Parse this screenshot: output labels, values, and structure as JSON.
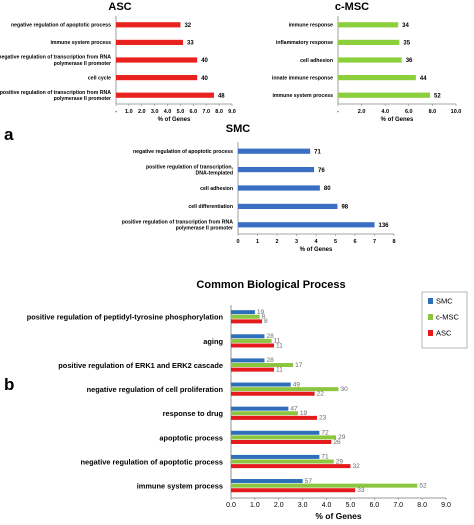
{
  "panel_labels": {
    "a": "a",
    "b": "b"
  },
  "colors": {
    "red": "#e8231f",
    "green": "#8ccf3c",
    "blue": "#3a6fc4",
    "smc": "#2e6fba",
    "cmsc": "#8cc63f",
    "asc": "#e41a1c",
    "label": "#000000",
    "value": "#6b6b6b"
  },
  "chart_data": [
    {
      "type": "bar",
      "orientation": "horizontal",
      "title": "ASC",
      "categories": [
        "negative regulation of apoptotic process",
        "immune system process",
        "negative regulation of transcription from RNA polymerase II promoter",
        "cell cycle",
        "positive regulation of transcription from RNA polymerase II promoter"
      ],
      "values": [
        5.0,
        5.2,
        6.3,
        6.3,
        7.6
      ],
      "data_labels": [
        "32",
        "33",
        "40",
        "40",
        "48"
      ],
      "xlabel": "% of Genes",
      "xticks": [
        "-",
        "1.0",
        "2.0",
        "3.0",
        "4.0",
        "5.0",
        "6.0",
        "7.0",
        "8.0",
        "9.0"
      ],
      "xlim": [
        0,
        9
      ],
      "color": "#e8231f"
    },
    {
      "type": "bar",
      "orientation": "horizontal",
      "title": "c-MSC",
      "categories": [
        "immune response",
        "inflammatory response",
        "cell adhesion",
        "innate immune response",
        "immune system process"
      ],
      "values": [
        5.1,
        5.2,
        5.4,
        6.6,
        7.8
      ],
      "data_labels": [
        "34",
        "35",
        "36",
        "44",
        "52"
      ],
      "xlabel": "% of Genes",
      "xticks": [
        "-",
        "2.0",
        "4.0",
        "6.0",
        "8.0",
        "10.0"
      ],
      "xlim": [
        0,
        10
      ],
      "color": "#8ccf3c"
    },
    {
      "type": "bar",
      "orientation": "horizontal",
      "title": "SMC",
      "categories": [
        "negative regulation of apoptotic process",
        "positive regulation of transcription, DNA-templated",
        "cell adhesion",
        "cell differentiation",
        "positive regulation of transcription from RNA polymerase II promoter"
      ],
      "values": [
        3.7,
        3.9,
        4.2,
        5.1,
        7.0
      ],
      "data_labels": [
        "71",
        "76",
        "80",
        "98",
        "136"
      ],
      "xlabel": "% of Genes",
      "xticks": [
        "0",
        "1",
        "2",
        "3",
        "4",
        "5",
        "6",
        "7",
        "8"
      ],
      "xlim": [
        0,
        8
      ],
      "color": "#3a6fc4"
    },
    {
      "type": "bar",
      "orientation": "horizontal",
      "title": "Common Biological Process",
      "categories": [
        "positive regulation of peptidyl-tyrosine phosphorylation",
        "aging",
        "positive regulation of ERK1 and ERK2 cascade",
        "negative regulation of cell proliferation",
        "response to drug",
        "apoptotic process",
        "negative regulation of apoptotic process",
        "immune system process"
      ],
      "series": [
        {
          "name": "SMC",
          "color": "#2e6fba",
          "values": [
            1.0,
            1.4,
            1.4,
            2.5,
            2.4,
            3.7,
            3.7,
            3.0
          ],
          "labels": [
            "19",
            "28",
            "28",
            "49",
            "47",
            "72",
            "71",
            "57"
          ]
        },
        {
          "name": "c-MSC",
          "color": "#8cc63f",
          "values": [
            1.2,
            1.7,
            2.6,
            4.5,
            2.8,
            4.4,
            4.3,
            7.8
          ],
          "labels": [
            "8",
            "11",
            "17",
            "30",
            "19",
            "29",
            "29",
            "52"
          ]
        },
        {
          "name": "ASC",
          "color": "#e41a1c",
          "values": [
            1.3,
            1.8,
            1.8,
            3.5,
            3.6,
            4.2,
            5.0,
            5.2
          ],
          "labels": [
            "8",
            "11",
            "11",
            "22",
            "23",
            "26",
            "32",
            "33"
          ]
        }
      ],
      "xlabel": "% of Genes",
      "xticks": [
        "0.0",
        "1.0",
        "2.0",
        "3.0",
        "4.0",
        "5.0",
        "6.0",
        "7.0",
        "8.0",
        "9.0"
      ],
      "xlim": [
        0,
        9
      ],
      "legend_position": "top-right"
    }
  ]
}
